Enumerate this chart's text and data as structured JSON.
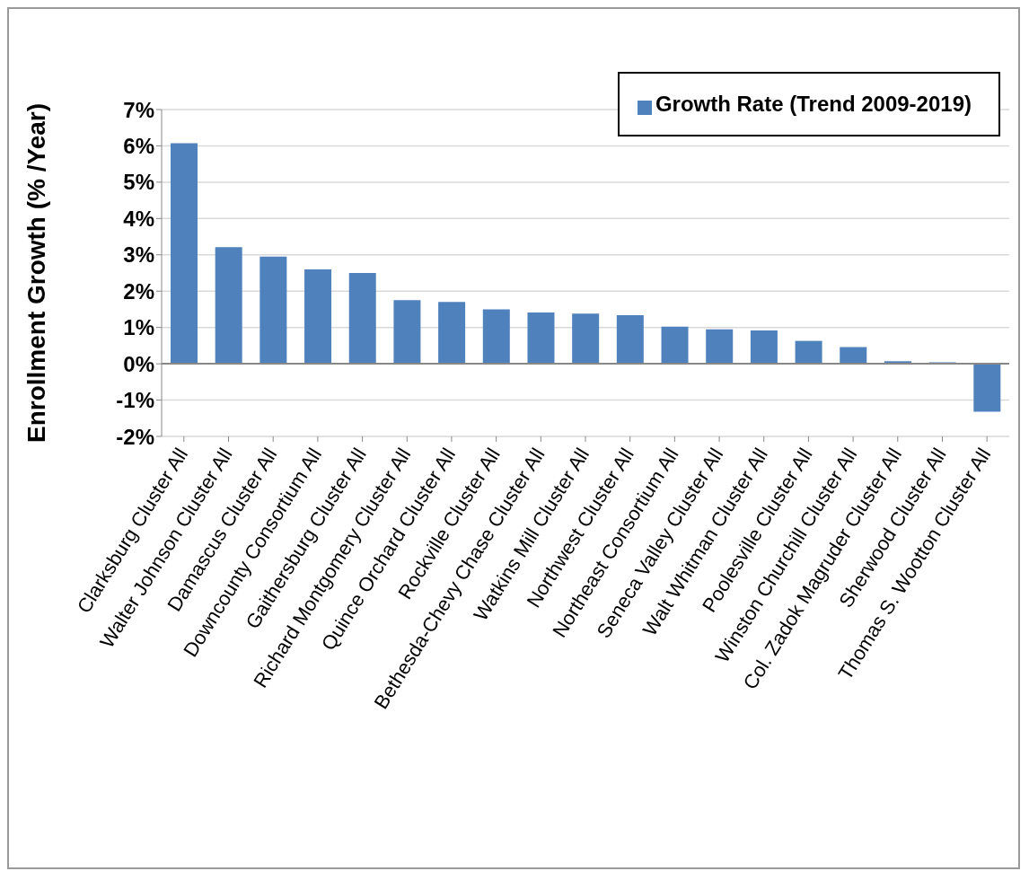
{
  "chart_data": {
    "type": "bar",
    "ylabel": "Enrollment Growth (% /Year)",
    "categories": [
      "Clarksburg Cluster All",
      "Walter Johnson Cluster All",
      "Damascus Cluster All",
      "Downcounty Consortium All",
      "Gaithersburg Cluster All",
      "Richard Montgomery Cluster All",
      "Quince Orchard Cluster All",
      "Rockville Cluster All",
      "Bethesda-Chevy Chase Cluster All",
      "Watkins Mill Cluster All",
      "Northwest Cluster All",
      "Northeast Consortium All",
      "Seneca Valley Cluster All",
      "Walt Whitman Cluster All",
      "Poolesville Cluster All",
      "Winston Churchill Cluster All",
      "Col. Zadok Magruder Cluster All",
      "Sherwood Cluster All",
      "Thomas S. Wootton Cluster All"
    ],
    "series": [
      {
        "name": "Growth Rate (Trend 2009-2019)",
        "color": "#4f81bd",
        "values": [
          6.07,
          3.21,
          2.95,
          2.6,
          2.5,
          1.75,
          1.7,
          1.5,
          1.41,
          1.38,
          1.34,
          1.02,
          0.95,
          0.92,
          0.63,
          0.46,
          0.07,
          0.04,
          -1.32
        ]
      }
    ],
    "ylim": [
      -2,
      7
    ],
    "yticks": [
      {
        "value": -2,
        "label": "-2%"
      },
      {
        "value": -1,
        "label": "-1%"
      },
      {
        "value": 0,
        "label": "0%"
      },
      {
        "value": 1,
        "label": "1%"
      },
      {
        "value": 2,
        "label": "2%"
      },
      {
        "value": 3,
        "label": "3%"
      },
      {
        "value": 4,
        "label": "4%"
      },
      {
        "value": 5,
        "label": "5%"
      },
      {
        "value": 6,
        "label": "6%"
      },
      {
        "value": 7,
        "label": "7%"
      }
    ],
    "grid": "y",
    "legend": "top right"
  }
}
